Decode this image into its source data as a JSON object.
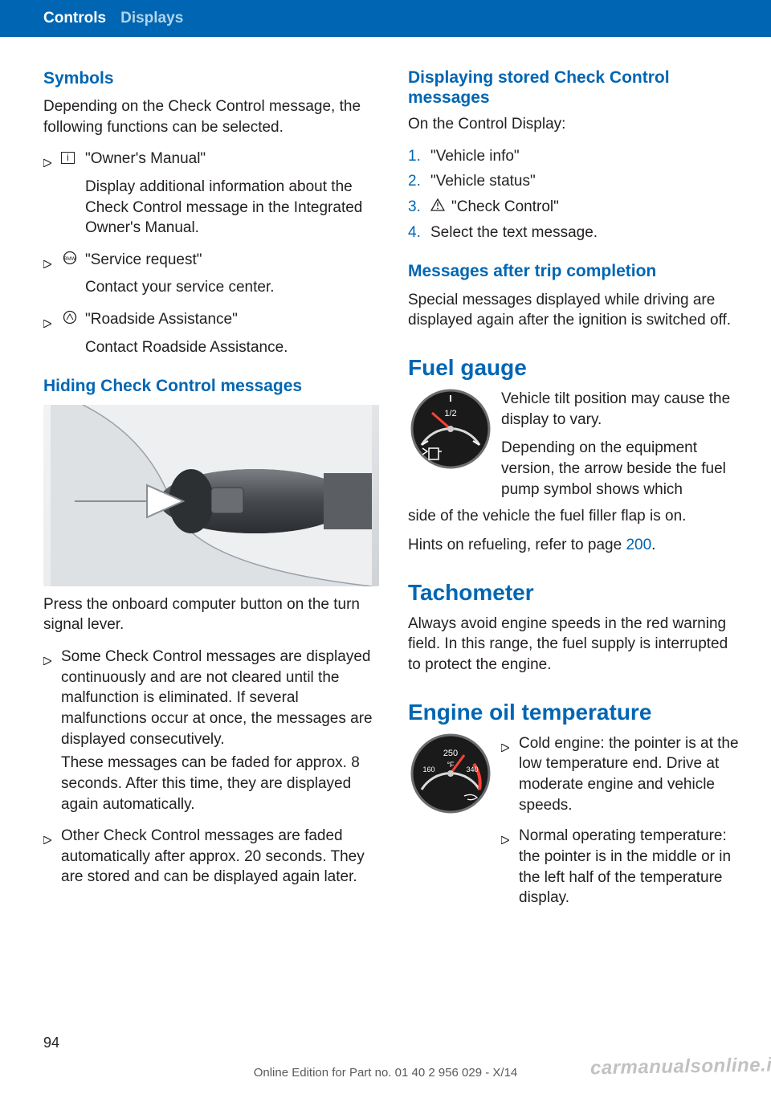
{
  "header": {
    "tab1": "Controls",
    "tab2": "Displays"
  },
  "col1": {
    "symbols_title": "Symbols",
    "symbols_intro": "Depending on the Check Control message, the following functions can be selected.",
    "sym1_label": "\"Owner's Manual\"",
    "sym1_desc": "Display additional information about the Check Control message in the Integrated Owner's Manual.",
    "sym2_label": "\"Service request\"",
    "sym2_desc": "Contact your service center.",
    "sym3_label": "\"Roadside Assistance\"",
    "sym3_desc": "Contact Roadside Assistance.",
    "hiding_title": "Hiding Check Control messages",
    "hiding_caption": "Press the onboard computer button on the turn signal lever.",
    "hb1": "Some Check Control messages are dis­played continuously and are not cleared until the malfunction is eliminated. If sev­eral malfunctions occur at once, the mes­sages are displayed consecutively.",
    "hb1b": "These messages can be faded for approx. 8 seconds. After this time, they are dis­played again automatically.",
    "hb2": "Other Check Control messages are faded automatically after approx. 20 seconds. They are stored and can be displayed again later."
  },
  "col2": {
    "disp_title": "Displaying stored Check Control messages",
    "disp_intro": "On the Control Display:",
    "step1": "\"Vehicle info\"",
    "step2": "\"Vehicle status\"",
    "step3": "\"Check Control\"",
    "step4": "Select the text message.",
    "msgs_title": "Messages after trip completion",
    "msgs_body": "Special messages displayed while driving are displayed again after the ignition is switched off.",
    "fuel_title": "Fuel gauge",
    "fuel_p1": "Vehicle tilt position may cause the display to vary.",
    "fuel_p2": "Depending on the equipment version, the arrow beside the fuel pump symbol shows which side of the vehicle the fuel filler flap is on.",
    "fuel_ref_pre": "Hints on refueling, refer to page ",
    "fuel_ref_link": "200",
    "fuel_ref_post": ".",
    "tach_title": "Tachometer",
    "tach_body": "Always avoid engine speeds in the red warning field. In this range, the fuel supply is inter­rupted to protect the engine.",
    "oil_title": "Engine oil temperature",
    "oil_b1": "Cold engine: the pointer is at the low temperature end. Drive at moderate engine and vehicle speeds.",
    "oil_b2": "Normal operating tempera­ture: the pointer is in the middle or in the left half of the temperature display."
  },
  "footer": {
    "page": "94",
    "line": "Online Edition for Part no. 01 40 2 956 029 - X/14",
    "watermark": "carmanualsonline.info"
  },
  "colors": {
    "brand": "#0066b3",
    "text": "#231f20",
    "gauge_bg": "#1a1a1a"
  }
}
